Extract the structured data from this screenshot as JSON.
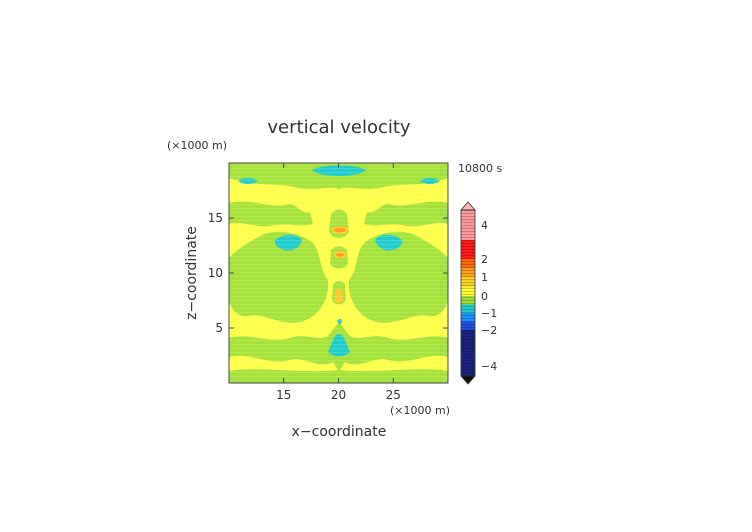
{
  "chart_data": {
    "type": "heatmap",
    "title": "vertical velocity",
    "time_label": "10800 s",
    "xlabel": "x−coordinate",
    "ylabel": "z−coordinate",
    "x_unit": "(×1000 m)",
    "y_unit": "(×1000 m)",
    "xlim": [
      10,
      30
    ],
    "ylim": [
      0,
      20
    ],
    "x_ticks": [
      15,
      20,
      25
    ],
    "y_ticks": [
      5,
      10,
      15
    ],
    "tick_labels": {
      "x": [
        "15",
        "20",
        "25"
      ],
      "y": [
        "5",
        "10",
        "15"
      ]
    },
    "colorbar": {
      "ticks": [
        4,
        2,
        1,
        0,
        -1,
        -2,
        -4
      ],
      "tick_labels": [
        "4",
        "2",
        "1",
        "0",
        "−1",
        "−2",
        "−4"
      ],
      "levels": [
        {
          "min": -5,
          "max": -2,
          "color": "#1a237e"
        },
        {
          "min": -2,
          "max": -1.5,
          "color": "#1e50e0"
        },
        {
          "min": -1.5,
          "max": -1,
          "color": "#1e90ff"
        },
        {
          "min": -1,
          "max": -0.5,
          "color": "#22cccc"
        },
        {
          "min": -0.5,
          "max": 0,
          "color": "#9fe03a"
        },
        {
          "min": 0,
          "max": 0.5,
          "color": "#ffff33"
        },
        {
          "min": 0.5,
          "max": 1,
          "color": "#ffd02a"
        },
        {
          "min": 1,
          "max": 1.5,
          "color": "#ff9f1a"
        },
        {
          "min": 1.5,
          "max": 2,
          "color": "#ff6a00"
        },
        {
          "min": 2,
          "max": 3,
          "color": "#ff1a1a"
        },
        {
          "min": 3,
          "max": 5,
          "color": "#ff9a9a"
        }
      ]
    },
    "regions": {
      "background": "yellow",
      "green_zones": [
        {
          "x0": 10,
          "x1": 30,
          "z0": 18.7,
          "z1": 20
        },
        {
          "x0": 10,
          "x1": 18,
          "z0": 14.8,
          "z1": 16.2
        },
        {
          "x0": 22,
          "x1": 30,
          "z0": 14.8,
          "z1": 16.2
        },
        {
          "x0": 10,
          "x1": 30,
          "z0": 0,
          "z1": 1.2
        },
        {
          "x0": 10,
          "x1": 30,
          "z0": 3.2,
          "z1": 4.6
        }
      ],
      "cyan_zones": [
        {
          "x": 20,
          "z": 19.1
        },
        {
          "x": 15.3,
          "z": 12.7
        },
        {
          "x": 24.4,
          "z": 12.7
        },
        {
          "x": 20,
          "z": 3.8
        }
      ],
      "orange_zones": [
        {
          "x": 20,
          "z": 13.8
        },
        {
          "x": 20,
          "z": 11.6
        },
        {
          "x": 20,
          "z": 8.2
        }
      ]
    },
    "grid": false,
    "legend_position": "right"
  }
}
